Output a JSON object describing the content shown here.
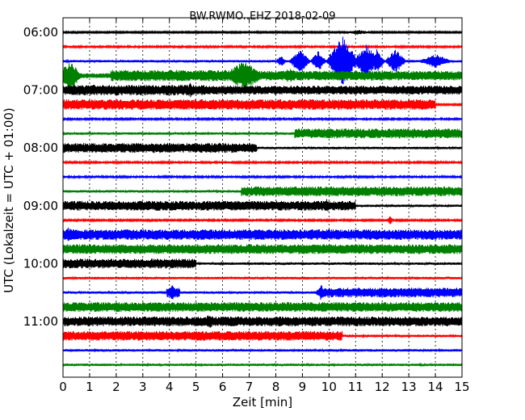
{
  "chart_data": {
    "type": "line",
    "title": "BW.RWMO..EHZ 2018-02-09",
    "xlabel": "Zeit  [min]",
    "ylabel": "UTC (Lokalzeit = UTC + 01:00)",
    "xlim": [
      0,
      15
    ],
    "x_ticks": [
      "0",
      "1",
      "2",
      "3",
      "4",
      "5",
      "6",
      "7",
      "8",
      "9",
      "10",
      "11",
      "12",
      "13",
      "14",
      "15"
    ],
    "y_ticks": [
      {
        "label": "06:00",
        "trace": 0
      },
      {
        "label": "07:00",
        "trace": 4
      },
      {
        "label": "08:00",
        "trace": 8
      },
      {
        "label": "09:00",
        "trace": 12
      },
      {
        "label": "10:00",
        "trace": 16
      },
      {
        "label": "11:00",
        "trace": 20
      }
    ],
    "grid": true,
    "trace_minutes": 15,
    "color_cycle": [
      "#000000",
      "#ff0000",
      "#0000ff",
      "#008000"
    ],
    "traces": [
      {
        "start": "06:00",
        "segments": [
          [
            0,
            15,
            1
          ]
        ],
        "bursts": [
          [
            11.1,
            0.4,
            2
          ]
        ]
      },
      {
        "start": "06:15",
        "segments": [
          [
            0,
            15,
            1.2
          ]
        ],
        "bursts": []
      },
      {
        "start": "06:30",
        "segments": [
          [
            0,
            8,
            1.5
          ],
          [
            8,
            15,
            1.5
          ]
        ],
        "bursts": [
          [
            8.2,
            0.2,
            6
          ],
          [
            8.9,
            0.4,
            14
          ],
          [
            9.6,
            0.3,
            12
          ],
          [
            10.5,
            0.6,
            32
          ],
          [
            11.4,
            0.5,
            20
          ],
          [
            11.8,
            0.3,
            14
          ],
          [
            12.5,
            0.4,
            14
          ],
          [
            14,
            0.6,
            8
          ]
        ]
      },
      {
        "start": "06:45",
        "segments": [
          [
            0,
            0.5,
            12
          ],
          [
            0.5,
            1.8,
            3
          ],
          [
            1.8,
            6.3,
            7
          ],
          [
            6.3,
            15,
            6
          ]
        ],
        "bursts": [
          [
            0.3,
            0.4,
            18
          ],
          [
            6.8,
            0.8,
            18
          ],
          [
            8.5,
            0.6,
            8
          ]
        ]
      },
      {
        "start": "07:00",
        "segments": [
          [
            0,
            5.4,
            6.5
          ],
          [
            5.4,
            15,
            5.5
          ]
        ],
        "bursts": [
          [
            4.8,
            0.2,
            9
          ]
        ]
      },
      {
        "start": "07:15",
        "segments": [
          [
            0,
            14,
            6.5
          ],
          [
            14,
            15,
            1
          ]
        ],
        "bursts": []
      },
      {
        "start": "07:30",
        "segments": [
          [
            0,
            15,
            1.2
          ]
        ],
        "bursts": []
      },
      {
        "start": "07:45",
        "segments": [
          [
            0,
            8.7,
            1.5
          ],
          [
            8.7,
            15,
            6
          ]
        ],
        "bursts": []
      },
      {
        "start": "08:00",
        "segments": [
          [
            0,
            7.3,
            6
          ],
          [
            7.3,
            15,
            1.5
          ]
        ],
        "bursts": []
      },
      {
        "start": "08:15",
        "segments": [
          [
            0,
            15,
            1.2
          ]
        ],
        "bursts": []
      },
      {
        "start": "08:30",
        "segments": [
          [
            0,
            15,
            1.2
          ]
        ],
        "bursts": []
      },
      {
        "start": "08:45",
        "segments": [
          [
            0,
            6.7,
            1.5
          ],
          [
            6.7,
            15,
            6
          ]
        ],
        "bursts": []
      },
      {
        "start": "09:00",
        "segments": [
          [
            0,
            11,
            6
          ],
          [
            11,
            15,
            1.5
          ]
        ],
        "bursts": [
          [
            9.9,
            0.2,
            9
          ]
        ]
      },
      {
        "start": "09:15",
        "segments": [
          [
            0,
            15,
            1.2
          ]
        ],
        "bursts": [
          [
            12.3,
            0.1,
            5
          ]
        ]
      },
      {
        "start": "09:30",
        "segments": [
          [
            0,
            15,
            6.5
          ]
        ],
        "bursts": [
          [
            0.2,
            0.2,
            9
          ]
        ]
      },
      {
        "start": "09:45",
        "segments": [
          [
            0,
            15,
            6
          ]
        ],
        "bursts": []
      },
      {
        "start": "10:00",
        "segments": [
          [
            0,
            5,
            6
          ],
          [
            5,
            15,
            1.5
          ]
        ],
        "bursts": []
      },
      {
        "start": "10:15",
        "segments": [
          [
            0,
            15,
            1.5
          ]
        ],
        "bursts": []
      },
      {
        "start": "10:30",
        "segments": [
          [
            0,
            3.9,
            1.5
          ],
          [
            3.9,
            4.4,
            6
          ],
          [
            4.4,
            9.6,
            1.5
          ],
          [
            9.6,
            15,
            6
          ]
        ],
        "bursts": [
          [
            4.1,
            0.2,
            9
          ],
          [
            9.7,
            0.2,
            9
          ]
        ]
      },
      {
        "start": "10:45",
        "segments": [
          [
            0,
            15,
            6
          ]
        ],
        "bursts": []
      },
      {
        "start": "11:00",
        "segments": [
          [
            0,
            15,
            6
          ]
        ],
        "bursts": [
          [
            5.5,
            0.3,
            8
          ]
        ]
      },
      {
        "start": "11:15",
        "segments": [
          [
            0,
            10.5,
            6
          ],
          [
            10.5,
            15,
            1.5
          ]
        ],
        "bursts": []
      },
      {
        "start": "11:30",
        "segments": [
          [
            0,
            15,
            1.5
          ]
        ],
        "bursts": []
      },
      {
        "start": "11:45",
        "segments": [
          [
            0,
            15,
            1.5
          ]
        ],
        "bursts": []
      }
    ]
  }
}
